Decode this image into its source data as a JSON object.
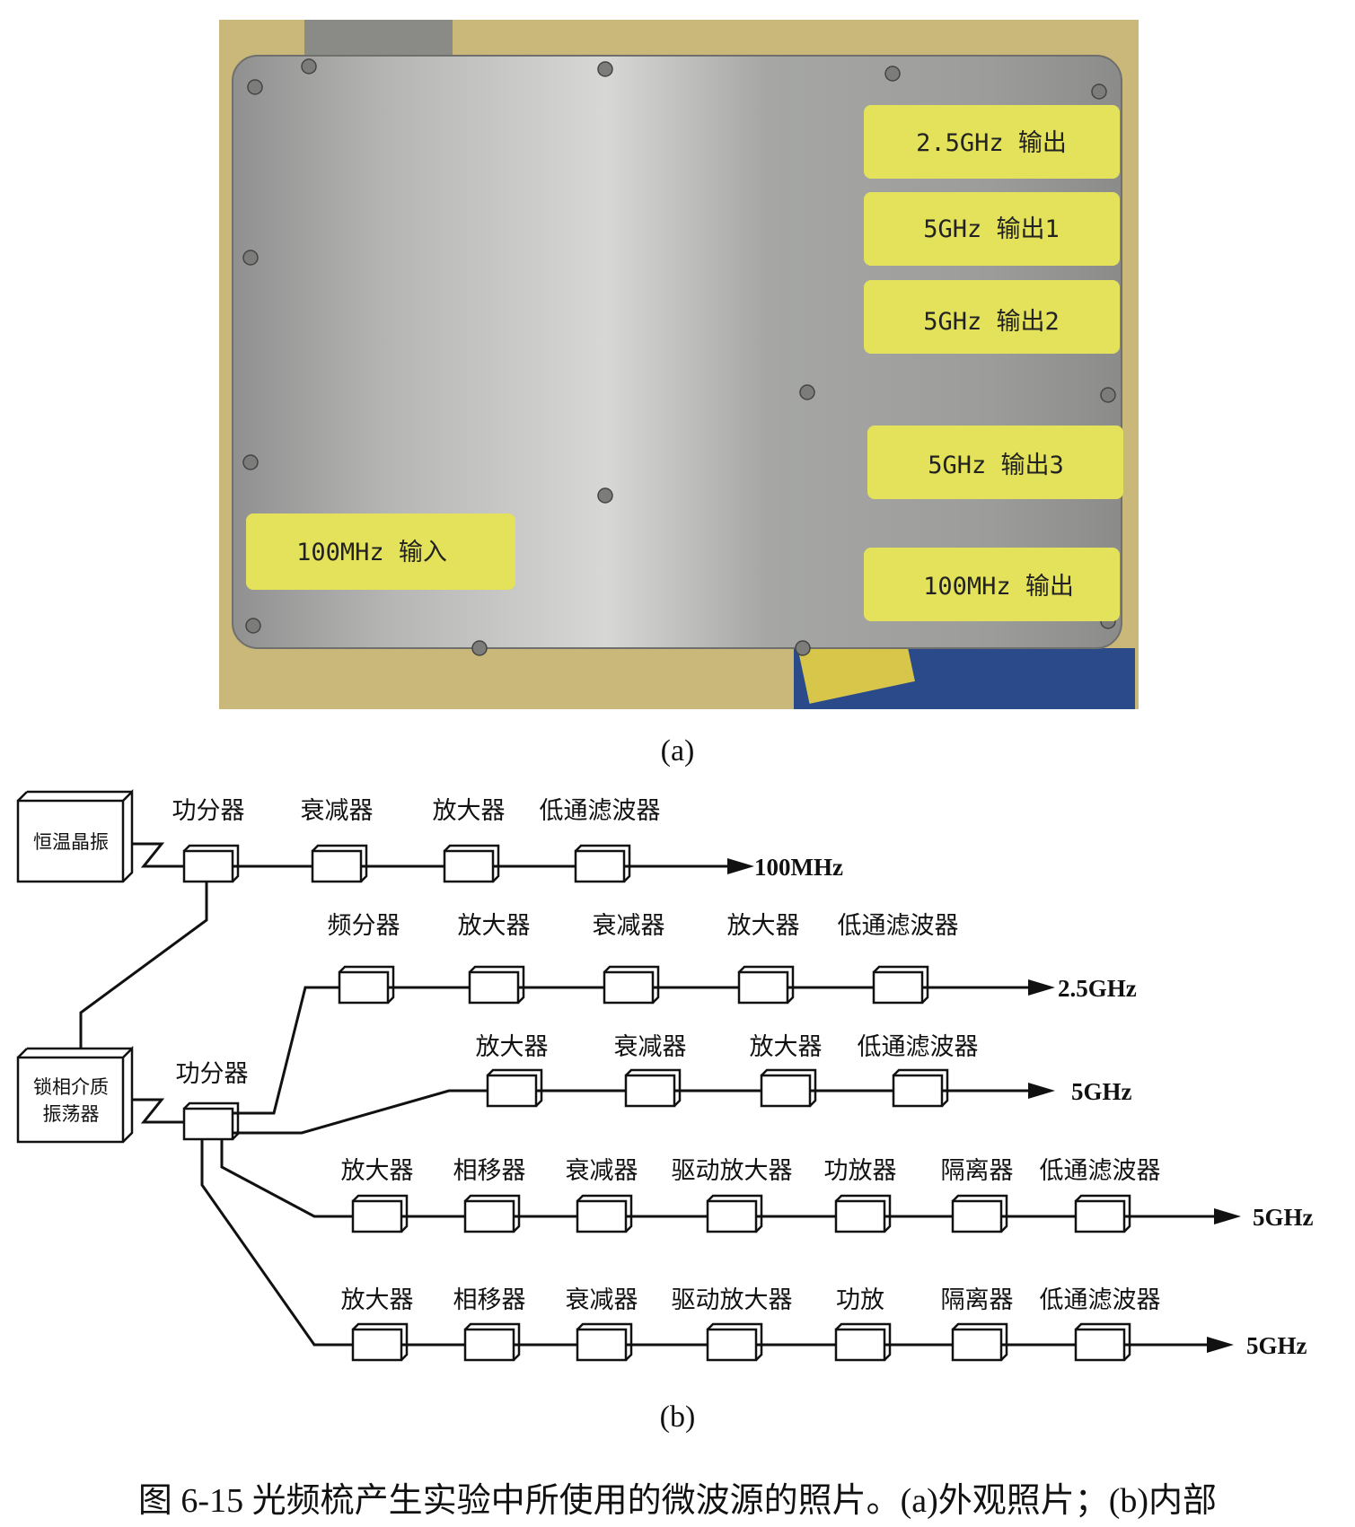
{
  "photo": {
    "labels": [
      "2.5GHz 输出",
      "5GHz 输出1",
      "5GHz 输出2",
      "5GHz 输出3",
      "100MHz 输出",
      "100MHz 输入"
    ],
    "label_color": "#e3e25a",
    "panel_color": "#a9aaa8",
    "background_color": "#c9b87a"
  },
  "diagram": {
    "sources": [
      "恒温晶振",
      "锁相介质振荡器"
    ],
    "source_lines": [
      [
        "恒温晶振"
      ],
      [
        "锁相介质",
        "振荡器"
      ]
    ],
    "splitter_label_top": "功分器",
    "splitter_label_mid": "功分器",
    "chains": [
      {
        "components": [
          "功分器",
          "衰减器",
          "放大器",
          "低通滤波器"
        ],
        "output": "100MHz"
      },
      {
        "components": [
          "频分器",
          "放大器",
          "衰减器",
          "放大器",
          "低通滤波器"
        ],
        "output": "2.5GHz"
      },
      {
        "components": [
          "放大器",
          "衰减器",
          "放大器",
          "低通滤波器"
        ],
        "output": "5GHz"
      },
      {
        "components": [
          "放大器",
          "相移器",
          "衰减器",
          "驱动放大器",
          "功放器",
          "隔离器",
          "低通滤波器"
        ],
        "output": "5GHz"
      },
      {
        "components": [
          "放大器",
          "相移器",
          "衰减器",
          "驱动放大器",
          "功放",
          "隔离器",
          "低通滤波器"
        ],
        "output": "5GHz"
      }
    ]
  },
  "captions": {
    "a": "(a)",
    "b": "(b)",
    "figure": "图 6-15  光频梳产生实验中所使用的微波源的照片。(a)外观照片；(b)内部"
  }
}
